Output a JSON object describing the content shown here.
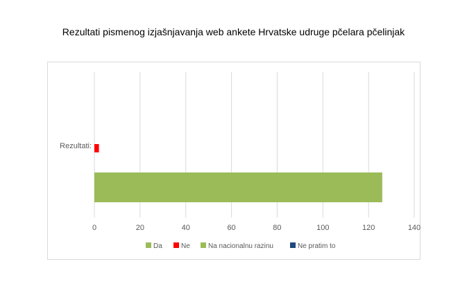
{
  "title": "Rezultati pismenog izjašnjavanja web ankete Hrvatske udruge pčelara pčelinjak",
  "chart_data": {
    "type": "bar",
    "orientation": "horizontal",
    "title": "Rezultati pismenog izjašnjavanja web ankete Hrvatske udruge pčelara pčelinjak",
    "categories": [
      "Rezultati:"
    ],
    "series": [
      {
        "name": "Da",
        "values": [
          0
        ],
        "color": "#9bbb59"
      },
      {
        "name": "Ne",
        "values": [
          2
        ],
        "color": "#ff0000"
      },
      {
        "name": "Na nacionalnu razinu",
        "values": [
          126
        ],
        "color": "#9bbb59"
      },
      {
        "name": "Ne pratim to",
        "values": [
          0
        ],
        "color": "#1f497d"
      }
    ],
    "xlim": [
      0,
      140
    ],
    "xticks": [
      0,
      20,
      40,
      60,
      80,
      100,
      120,
      140
    ],
    "xtick_labels": [
      "0",
      "20",
      "40",
      "60",
      "80",
      "100",
      "120",
      "140"
    ],
    "grid": true,
    "legend_position": "bottom"
  }
}
